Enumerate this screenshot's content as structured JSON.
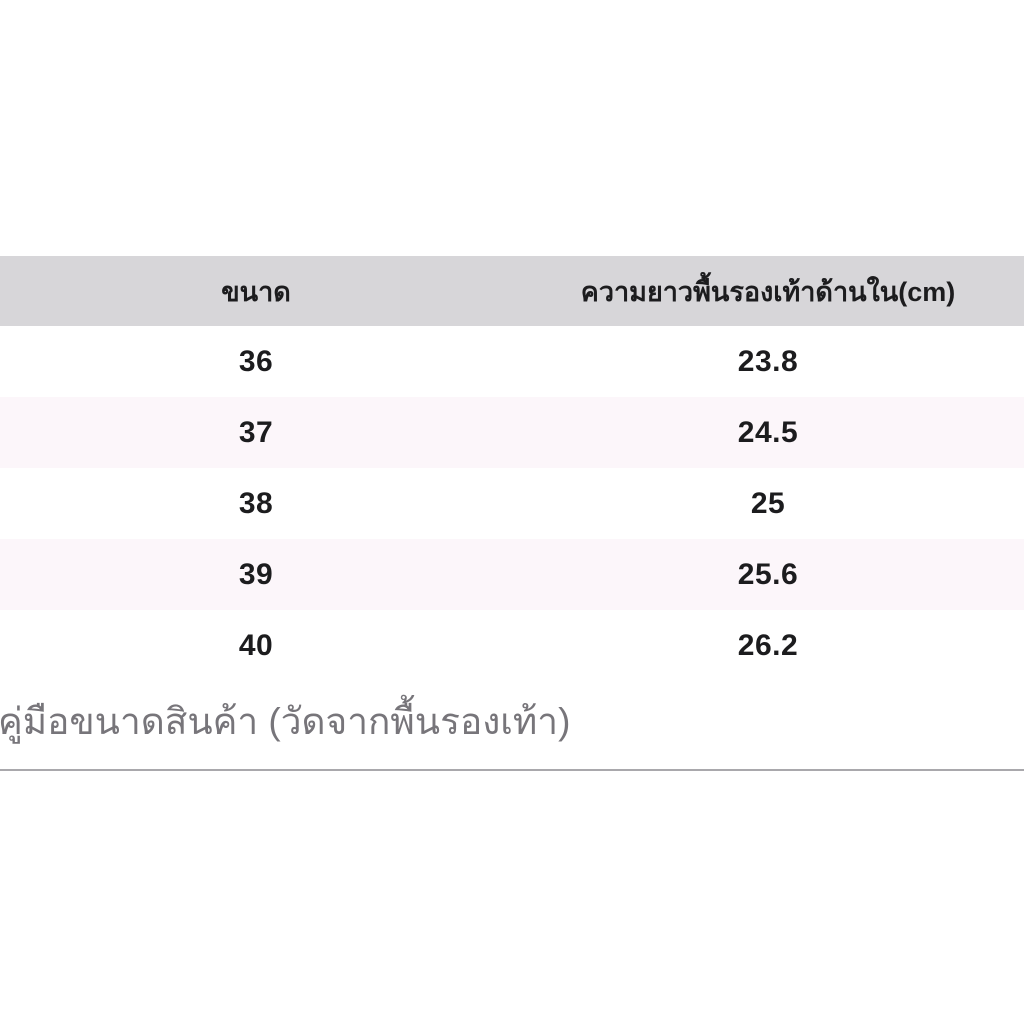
{
  "colors": {
    "header_bg": "#d7d6d9",
    "row_alt_bg": "#fcf6fa",
    "row_bg": "#ffffff",
    "text": "#1c1c1e",
    "caption_text": "#77757a",
    "divider": "#a9a8ac",
    "page_bg": "#ffffff"
  },
  "table": {
    "headers": [
      "ขนาด",
      "ความยาวพื้นรองเท้าด้านใน(cm)"
    ],
    "rows": [
      {
        "size": "36",
        "length": "23.8"
      },
      {
        "size": "37",
        "length": "24.5"
      },
      {
        "size": "38",
        "length": "25"
      },
      {
        "size": "39",
        "length": "25.6"
      },
      {
        "size": "40",
        "length": "26.2"
      }
    ]
  },
  "caption": "คู่มือขนาดสินค้า (วัดจากพื้นรองเท้า)",
  "chart_data": {
    "type": "table",
    "title": "",
    "columns": [
      "ขนาด",
      "ความยาวพื้นรองเท้าด้านใน(cm)"
    ],
    "rows": [
      [
        "36",
        "23.8"
      ],
      [
        "37",
        "24.5"
      ],
      [
        "38",
        "25"
      ],
      [
        "39",
        "25.6"
      ],
      [
        "40",
        "26.2"
      ]
    ],
    "notes": "คู่มือขนาดสินค้า (วัดจากพื้นรองเท้า)",
    "layout_hints": {
      "header_fill": "#d7d6d9",
      "zebra_stripe_fill": "#fcf6fa",
      "column_alignment": [
        "center",
        "center"
      ]
    }
  }
}
